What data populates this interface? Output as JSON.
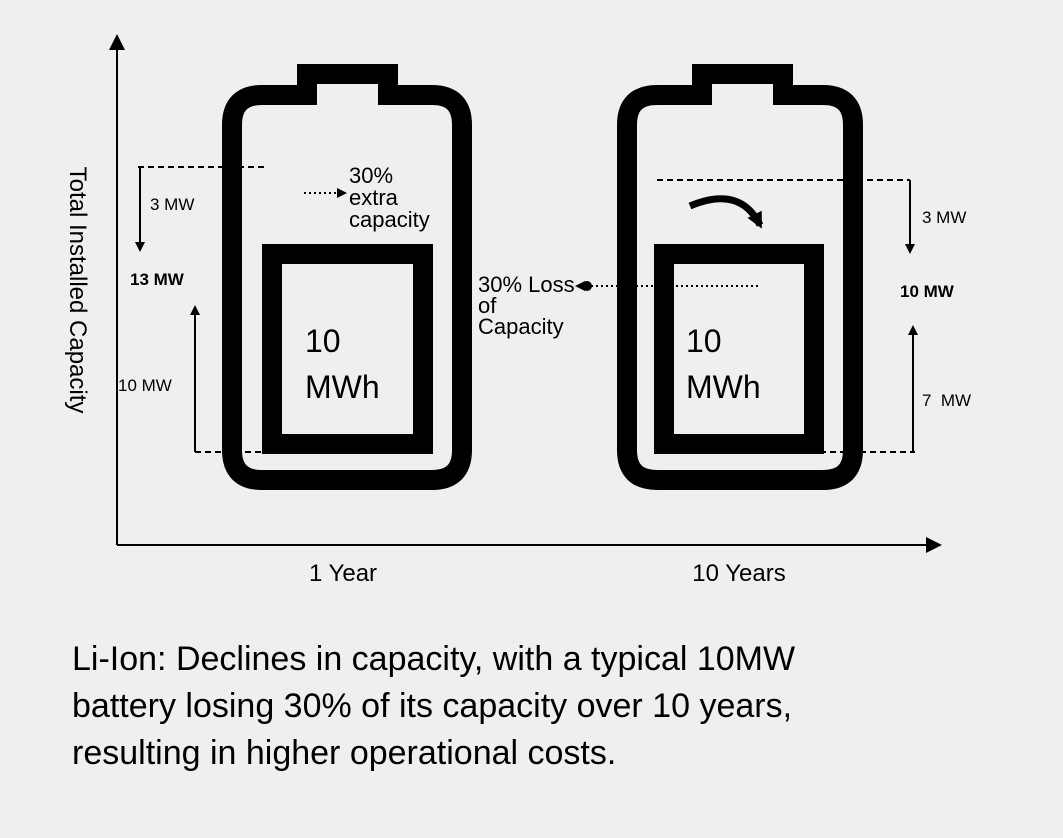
{
  "axis_label": "Total Installed Capacity",
  "columns": [
    {
      "label": "1 Year",
      "battery": [
        "10",
        "MWh"
      ],
      "top_gap": "3 MW",
      "total": "13 MW",
      "base": "10 MW",
      "note": [
        "30%",
        "extra",
        "capacity"
      ]
    },
    {
      "label": "10 Years",
      "battery": [
        "10",
        "MWh"
      ],
      "top_gap": "3 MW",
      "total": "10 MW",
      "base": "7  MW"
    }
  ],
  "loss_note": [
    "30% Loss",
    "of",
    "Capacity"
  ],
  "caption": [
    "Li-Ion: Declines in capacity, with a typical 10MW",
    "battery losing 30% of its capacity over 10 years,",
    "resulting in higher operational costs."
  ]
}
